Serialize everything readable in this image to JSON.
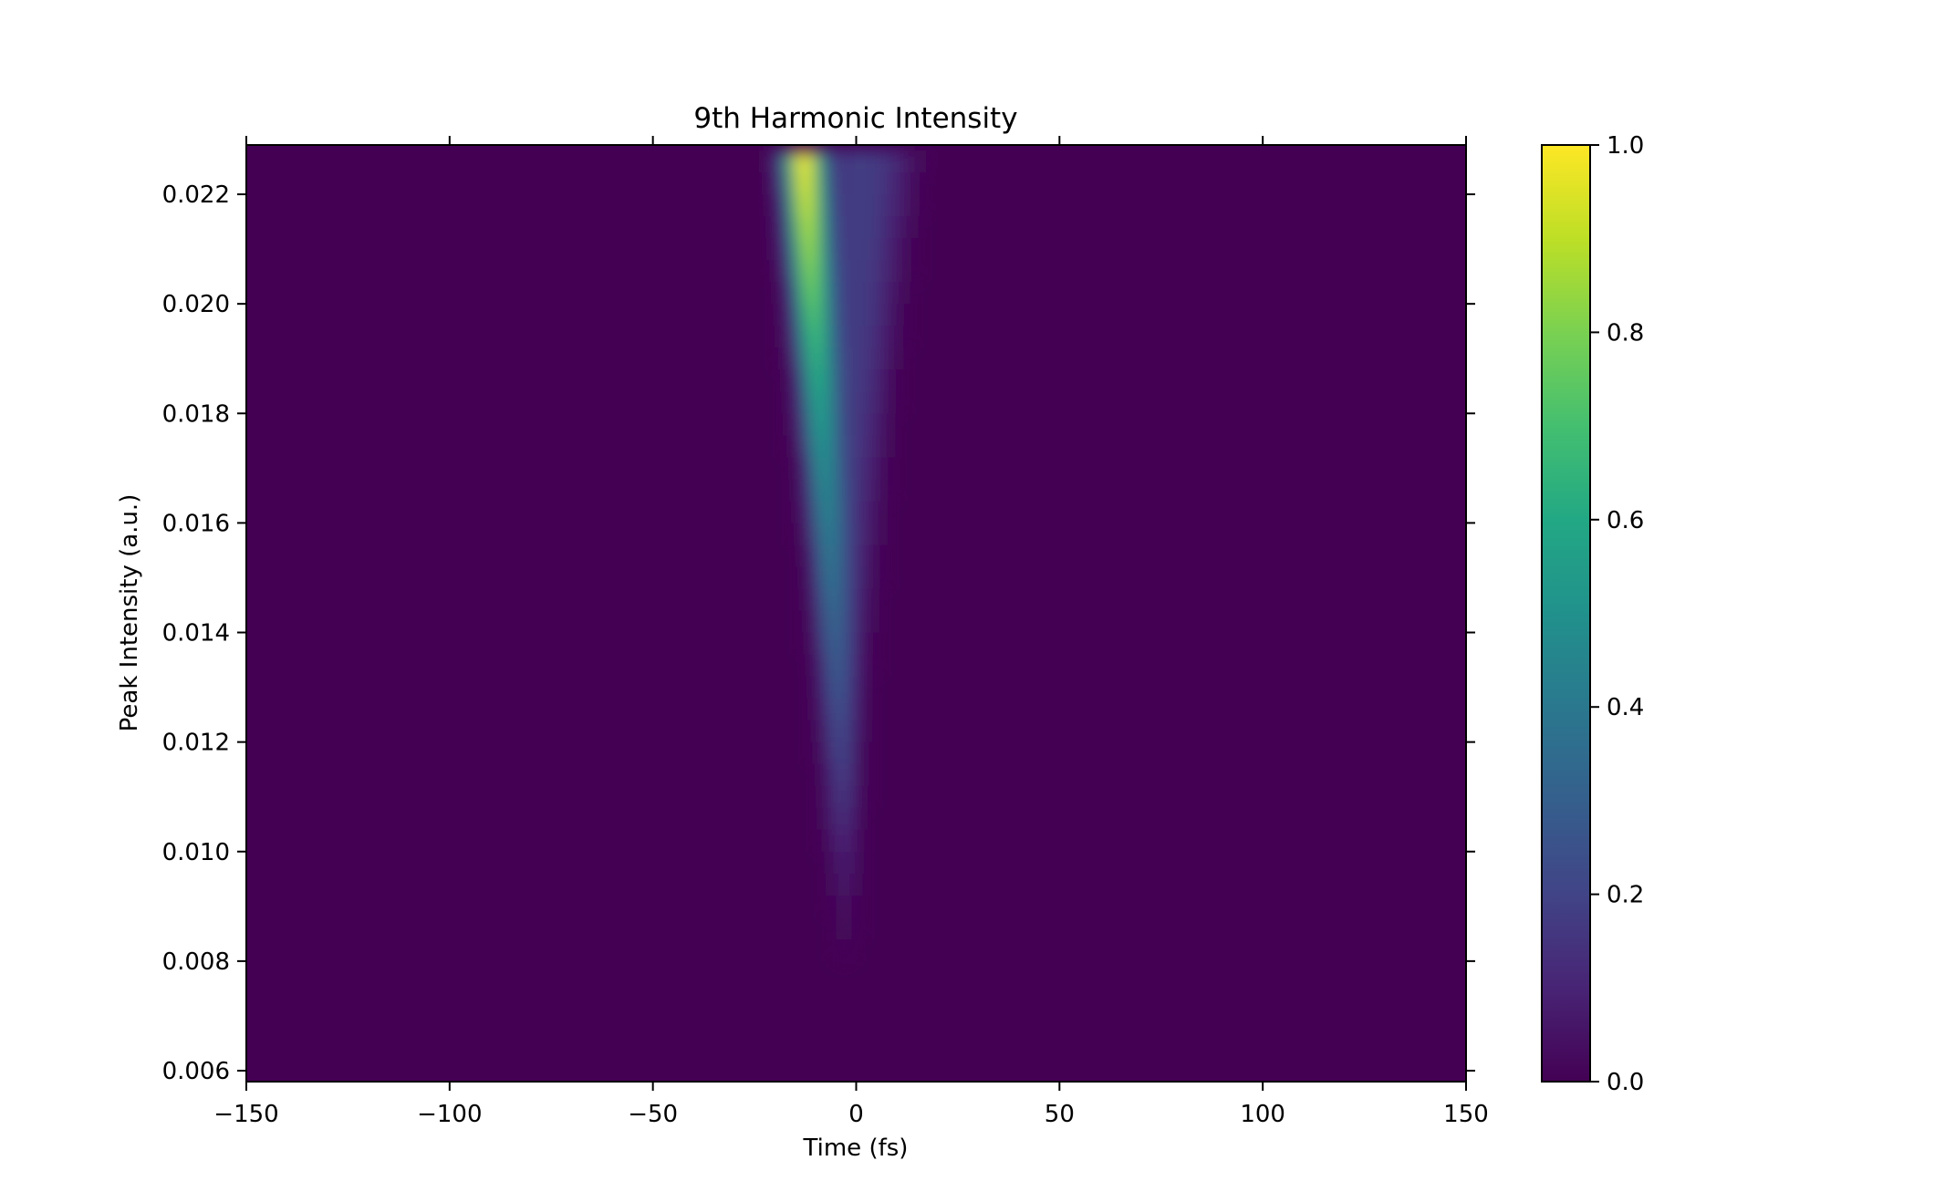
{
  "chart_data": {
    "type": "heatmap",
    "title": "9th Harmonic Intensity",
    "xlabel": "Time (fs)",
    "ylabel": "Peak Intensity (a.u.)",
    "xlim": [
      -150,
      150
    ],
    "ylim": [
      0.0058,
      0.0229
    ],
    "x_ticks": [
      -150,
      -100,
      -50,
      0,
      50,
      100,
      150
    ],
    "x_tick_labels": [
      "−150",
      "−100",
      "−50",
      "0",
      "50",
      "100",
      "150"
    ],
    "y_ticks": [
      0.006,
      0.008,
      0.01,
      0.012,
      0.014,
      0.016,
      0.018,
      0.02,
      0.022
    ],
    "y_tick_labels": [
      "0.006",
      "0.008",
      "0.010",
      "0.012",
      "0.014",
      "0.016",
      "0.018",
      "0.020",
      "0.022"
    ],
    "colormap": "viridis",
    "colorbar": {
      "range": [
        0.0,
        1.0
      ],
      "ticks": [
        0.0,
        0.2,
        0.4,
        0.6,
        0.8,
        1.0
      ],
      "tick_labels": [
        "0.0",
        "0.2",
        "0.4",
        "0.6",
        "0.8",
        "1.0"
      ]
    },
    "grid": false,
    "x": [
      -24,
      -22,
      -20,
      -18,
      -16,
      -14,
      -12,
      -10,
      -8,
      -6,
      -4,
      -2,
      0,
      2,
      4,
      6,
      8,
      10,
      12,
      14,
      16,
      18,
      20
    ],
    "y": [
      0.0226,
      0.0222,
      0.0218,
      0.0214,
      0.021,
      0.0206,
      0.0202,
      0.0198,
      0.0194,
      0.019,
      0.0186,
      0.0182,
      0.0178,
      0.0174,
      0.017,
      0.0166,
      0.0162,
      0.0158,
      0.0154,
      0.015,
      0.0146,
      0.0142,
      0.0138,
      0.0134,
      0.013,
      0.0126,
      0.0122,
      0.0118,
      0.0114,
      0.011,
      0.0106,
      0.0102,
      0.0098,
      0.0094,
      0.009,
      0.0086,
      0.0082,
      0.0078
    ],
    "z": [
      [
        0.0,
        0.02,
        0.09,
        0.25,
        0.63,
        0.95,
        0.99,
        0.72,
        0.36,
        0.18,
        0.16,
        0.17,
        0.18,
        0.18,
        0.17,
        0.16,
        0.14,
        0.11,
        0.07,
        0.04,
        0.02,
        0.01,
        0.0
      ],
      [
        0.0,
        0.01,
        0.07,
        0.21,
        0.55,
        0.9,
        0.97,
        0.75,
        0.41,
        0.2,
        0.16,
        0.17,
        0.18,
        0.18,
        0.17,
        0.16,
        0.13,
        0.1,
        0.06,
        0.03,
        0.01,
        0.0,
        0.0
      ],
      [
        0.0,
        0.0,
        0.05,
        0.17,
        0.47,
        0.83,
        0.95,
        0.77,
        0.45,
        0.23,
        0.17,
        0.17,
        0.18,
        0.18,
        0.17,
        0.15,
        0.12,
        0.09,
        0.05,
        0.02,
        0.01,
        0.0,
        0.0
      ],
      [
        0.0,
        0.0,
        0.03,
        0.13,
        0.38,
        0.75,
        0.91,
        0.78,
        0.48,
        0.25,
        0.18,
        0.17,
        0.18,
        0.18,
        0.17,
        0.14,
        0.11,
        0.08,
        0.04,
        0.02,
        0.0,
        0.0,
        0.0
      ],
      [
        0.0,
        0.0,
        0.02,
        0.1,
        0.3,
        0.66,
        0.87,
        0.78,
        0.51,
        0.27,
        0.19,
        0.17,
        0.18,
        0.18,
        0.16,
        0.14,
        0.1,
        0.06,
        0.03,
        0.01,
        0.0,
        0.0,
        0.0
      ],
      [
        0.0,
        0.0,
        0.01,
        0.07,
        0.24,
        0.57,
        0.82,
        0.77,
        0.53,
        0.3,
        0.2,
        0.17,
        0.18,
        0.17,
        0.16,
        0.13,
        0.09,
        0.05,
        0.02,
        0.01,
        0.0,
        0.0,
        0.0
      ],
      [
        0.0,
        0.0,
        0.0,
        0.05,
        0.18,
        0.48,
        0.76,
        0.76,
        0.55,
        0.32,
        0.21,
        0.17,
        0.17,
        0.17,
        0.15,
        0.12,
        0.08,
        0.04,
        0.02,
        0.0,
        0.0,
        0.0,
        0.0
      ],
      [
        0.0,
        0.0,
        0.0,
        0.03,
        0.13,
        0.39,
        0.68,
        0.74,
        0.56,
        0.34,
        0.22,
        0.17,
        0.17,
        0.17,
        0.15,
        0.11,
        0.07,
        0.03,
        0.01,
        0.0,
        0.0,
        0.0,
        0.0
      ],
      [
        0.0,
        0.0,
        0.0,
        0.02,
        0.09,
        0.31,
        0.6,
        0.71,
        0.57,
        0.36,
        0.23,
        0.17,
        0.17,
        0.16,
        0.14,
        0.1,
        0.06,
        0.03,
        0.01,
        0.0,
        0.0,
        0.0,
        0.0
      ],
      [
        0.0,
        0.0,
        0.0,
        0.01,
        0.06,
        0.24,
        0.52,
        0.67,
        0.57,
        0.38,
        0.24,
        0.18,
        0.17,
        0.16,
        0.13,
        0.09,
        0.05,
        0.02,
        0.0,
        0.0,
        0.0,
        0.0,
        0.0
      ],
      [
        0.0,
        0.0,
        0.0,
        0.0,
        0.04,
        0.18,
        0.44,
        0.63,
        0.57,
        0.4,
        0.25,
        0.18,
        0.17,
        0.15,
        0.12,
        0.08,
        0.04,
        0.01,
        0.0,
        0.0,
        0.0,
        0.0,
        0.0
      ],
      [
        0.0,
        0.0,
        0.0,
        0.0,
        0.03,
        0.13,
        0.37,
        0.58,
        0.56,
        0.41,
        0.26,
        0.18,
        0.16,
        0.15,
        0.11,
        0.07,
        0.03,
        0.01,
        0.0,
        0.0,
        0.0,
        0.0,
        0.0
      ],
      [
        0.0,
        0.0,
        0.0,
        0.0,
        0.02,
        0.09,
        0.3,
        0.53,
        0.55,
        0.42,
        0.27,
        0.18,
        0.16,
        0.14,
        0.1,
        0.06,
        0.02,
        0.0,
        0.0,
        0.0,
        0.0,
        0.0,
        0.0
      ],
      [
        0.0,
        0.0,
        0.0,
        0.0,
        0.01,
        0.06,
        0.24,
        0.47,
        0.53,
        0.42,
        0.28,
        0.19,
        0.16,
        0.13,
        0.09,
        0.05,
        0.02,
        0.0,
        0.0,
        0.0,
        0.0,
        0.0,
        0.0
      ],
      [
        0.0,
        0.0,
        0.0,
        0.0,
        0.0,
        0.04,
        0.18,
        0.41,
        0.51,
        0.43,
        0.29,
        0.19,
        0.15,
        0.12,
        0.08,
        0.04,
        0.01,
        0.0,
        0.0,
        0.0,
        0.0,
        0.0,
        0.0
      ],
      [
        0.0,
        0.0,
        0.0,
        0.0,
        0.0,
        0.03,
        0.14,
        0.35,
        0.48,
        0.43,
        0.3,
        0.2,
        0.15,
        0.11,
        0.07,
        0.03,
        0.01,
        0.0,
        0.0,
        0.0,
        0.0,
        0.0,
        0.0
      ],
      [
        0.0,
        0.0,
        0.0,
        0.0,
        0.0,
        0.02,
        0.1,
        0.29,
        0.45,
        0.43,
        0.31,
        0.2,
        0.14,
        0.1,
        0.06,
        0.02,
        0.0,
        0.0,
        0.0,
        0.0,
        0.0,
        0.0,
        0.0
      ],
      [
        0.0,
        0.0,
        0.0,
        0.0,
        0.0,
        0.01,
        0.07,
        0.24,
        0.41,
        0.42,
        0.32,
        0.21,
        0.14,
        0.09,
        0.05,
        0.02,
        0.0,
        0.0,
        0.0,
        0.0,
        0.0,
        0.0,
        0.0
      ],
      [
        0.0,
        0.0,
        0.0,
        0.0,
        0.0,
        0.0,
        0.05,
        0.19,
        0.37,
        0.41,
        0.32,
        0.21,
        0.13,
        0.08,
        0.04,
        0.01,
        0.0,
        0.0,
        0.0,
        0.0,
        0.0,
        0.0,
        0.0
      ],
      [
        0.0,
        0.0,
        0.0,
        0.0,
        0.0,
        0.0,
        0.03,
        0.15,
        0.33,
        0.39,
        0.32,
        0.21,
        0.13,
        0.07,
        0.03,
        0.01,
        0.0,
        0.0,
        0.0,
        0.0,
        0.0,
        0.0,
        0.0
      ],
      [
        0.0,
        0.0,
        0.0,
        0.0,
        0.0,
        0.0,
        0.02,
        0.11,
        0.28,
        0.37,
        0.32,
        0.21,
        0.12,
        0.06,
        0.02,
        0.0,
        0.0,
        0.0,
        0.0,
        0.0,
        0.0,
        0.0,
        0.0
      ],
      [
        0.0,
        0.0,
        0.0,
        0.0,
        0.0,
        0.0,
        0.01,
        0.08,
        0.24,
        0.34,
        0.31,
        0.21,
        0.11,
        0.05,
        0.02,
        0.0,
        0.0,
        0.0,
        0.0,
        0.0,
        0.0,
        0.0,
        0.0
      ],
      [
        0.0,
        0.0,
        0.0,
        0.0,
        0.0,
        0.0,
        0.01,
        0.06,
        0.2,
        0.31,
        0.3,
        0.21,
        0.11,
        0.04,
        0.01,
        0.0,
        0.0,
        0.0,
        0.0,
        0.0,
        0.0,
        0.0,
        0.0
      ],
      [
        0.0,
        0.0,
        0.0,
        0.0,
        0.0,
        0.0,
        0.0,
        0.04,
        0.16,
        0.28,
        0.29,
        0.21,
        0.1,
        0.04,
        0.01,
        0.0,
        0.0,
        0.0,
        0.0,
        0.0,
        0.0,
        0.0,
        0.0
      ],
      [
        0.0,
        0.0,
        0.0,
        0.0,
        0.0,
        0.0,
        0.0,
        0.03,
        0.12,
        0.25,
        0.27,
        0.2,
        0.1,
        0.03,
        0.0,
        0.0,
        0.0,
        0.0,
        0.0,
        0.0,
        0.0,
        0.0,
        0.0
      ],
      [
        0.0,
        0.0,
        0.0,
        0.0,
        0.0,
        0.0,
        0.0,
        0.02,
        0.09,
        0.21,
        0.25,
        0.19,
        0.09,
        0.02,
        0.0,
        0.0,
        0.0,
        0.0,
        0.0,
        0.0,
        0.0,
        0.0,
        0.0
      ],
      [
        0.0,
        0.0,
        0.0,
        0.0,
        0.0,
        0.0,
        0.0,
        0.01,
        0.07,
        0.18,
        0.23,
        0.18,
        0.08,
        0.02,
        0.0,
        0.0,
        0.0,
        0.0,
        0.0,
        0.0,
        0.0,
        0.0,
        0.0
      ],
      [
        0.0,
        0.0,
        0.0,
        0.0,
        0.0,
        0.0,
        0.0,
        0.01,
        0.05,
        0.15,
        0.21,
        0.17,
        0.07,
        0.01,
        0.0,
        0.0,
        0.0,
        0.0,
        0.0,
        0.0,
        0.0,
        0.0,
        0.0
      ],
      [
        0.0,
        0.0,
        0.0,
        0.0,
        0.0,
        0.0,
        0.0,
        0.0,
        0.03,
        0.12,
        0.18,
        0.16,
        0.07,
        0.01,
        0.0,
        0.0,
        0.0,
        0.0,
        0.0,
        0.0,
        0.0,
        0.0,
        0.0
      ],
      [
        0.0,
        0.0,
        0.0,
        0.0,
        0.0,
        0.0,
        0.0,
        0.0,
        0.02,
        0.09,
        0.16,
        0.14,
        0.06,
        0.01,
        0.0,
        0.0,
        0.0,
        0.0,
        0.0,
        0.0,
        0.0,
        0.0,
        0.0
      ],
      [
        0.0,
        0.0,
        0.0,
        0.0,
        0.0,
        0.0,
        0.0,
        0.0,
        0.02,
        0.07,
        0.13,
        0.12,
        0.05,
        0.0,
        0.0,
        0.0,
        0.0,
        0.0,
        0.0,
        0.0,
        0.0,
        0.0,
        0.0
      ],
      [
        0.0,
        0.0,
        0.0,
        0.0,
        0.0,
        0.0,
        0.0,
        0.0,
        0.01,
        0.05,
        0.1,
        0.1,
        0.04,
        0.0,
        0.0,
        0.0,
        0.0,
        0.0,
        0.0,
        0.0,
        0.0,
        0.0,
        0.0
      ],
      [
        0.0,
        0.0,
        0.0,
        0.0,
        0.0,
        0.0,
        0.0,
        0.0,
        0.0,
        0.03,
        0.07,
        0.08,
        0.03,
        0.0,
        0.0,
        0.0,
        0.0,
        0.0,
        0.0,
        0.0,
        0.0,
        0.0,
        0.0
      ],
      [
        0.0,
        0.0,
        0.0,
        0.0,
        0.0,
        0.0,
        0.0,
        0.0,
        0.0,
        0.02,
        0.05,
        0.06,
        0.02,
        0.0,
        0.0,
        0.0,
        0.0,
        0.0,
        0.0,
        0.0,
        0.0,
        0.0,
        0.0
      ],
      [
        0.0,
        0.0,
        0.0,
        0.0,
        0.0,
        0.0,
        0.0,
        0.0,
        0.0,
        0.01,
        0.03,
        0.04,
        0.01,
        0.0,
        0.0,
        0.0,
        0.0,
        0.0,
        0.0,
        0.0,
        0.0,
        0.0,
        0.0
      ],
      [
        0.0,
        0.0,
        0.0,
        0.0,
        0.0,
        0.0,
        0.0,
        0.0,
        0.0,
        0.0,
        0.02,
        0.02,
        0.01,
        0.0,
        0.0,
        0.0,
        0.0,
        0.0,
        0.0,
        0.0,
        0.0,
        0.0,
        0.0
      ],
      [
        0.0,
        0.0,
        0.0,
        0.0,
        0.0,
        0.0,
        0.0,
        0.0,
        0.0,
        0.0,
        0.01,
        0.01,
        0.0,
        0.0,
        0.0,
        0.0,
        0.0,
        0.0,
        0.0,
        0.0,
        0.0,
        0.0,
        0.0
      ],
      [
        0.0,
        0.0,
        0.0,
        0.0,
        0.0,
        0.0,
        0.0,
        0.0,
        0.0,
        0.0,
        0.0,
        0.0,
        0.0,
        0.0,
        0.0,
        0.0,
        0.0,
        0.0,
        0.0,
        0.0,
        0.0,
        0.0,
        0.0
      ]
    ]
  }
}
